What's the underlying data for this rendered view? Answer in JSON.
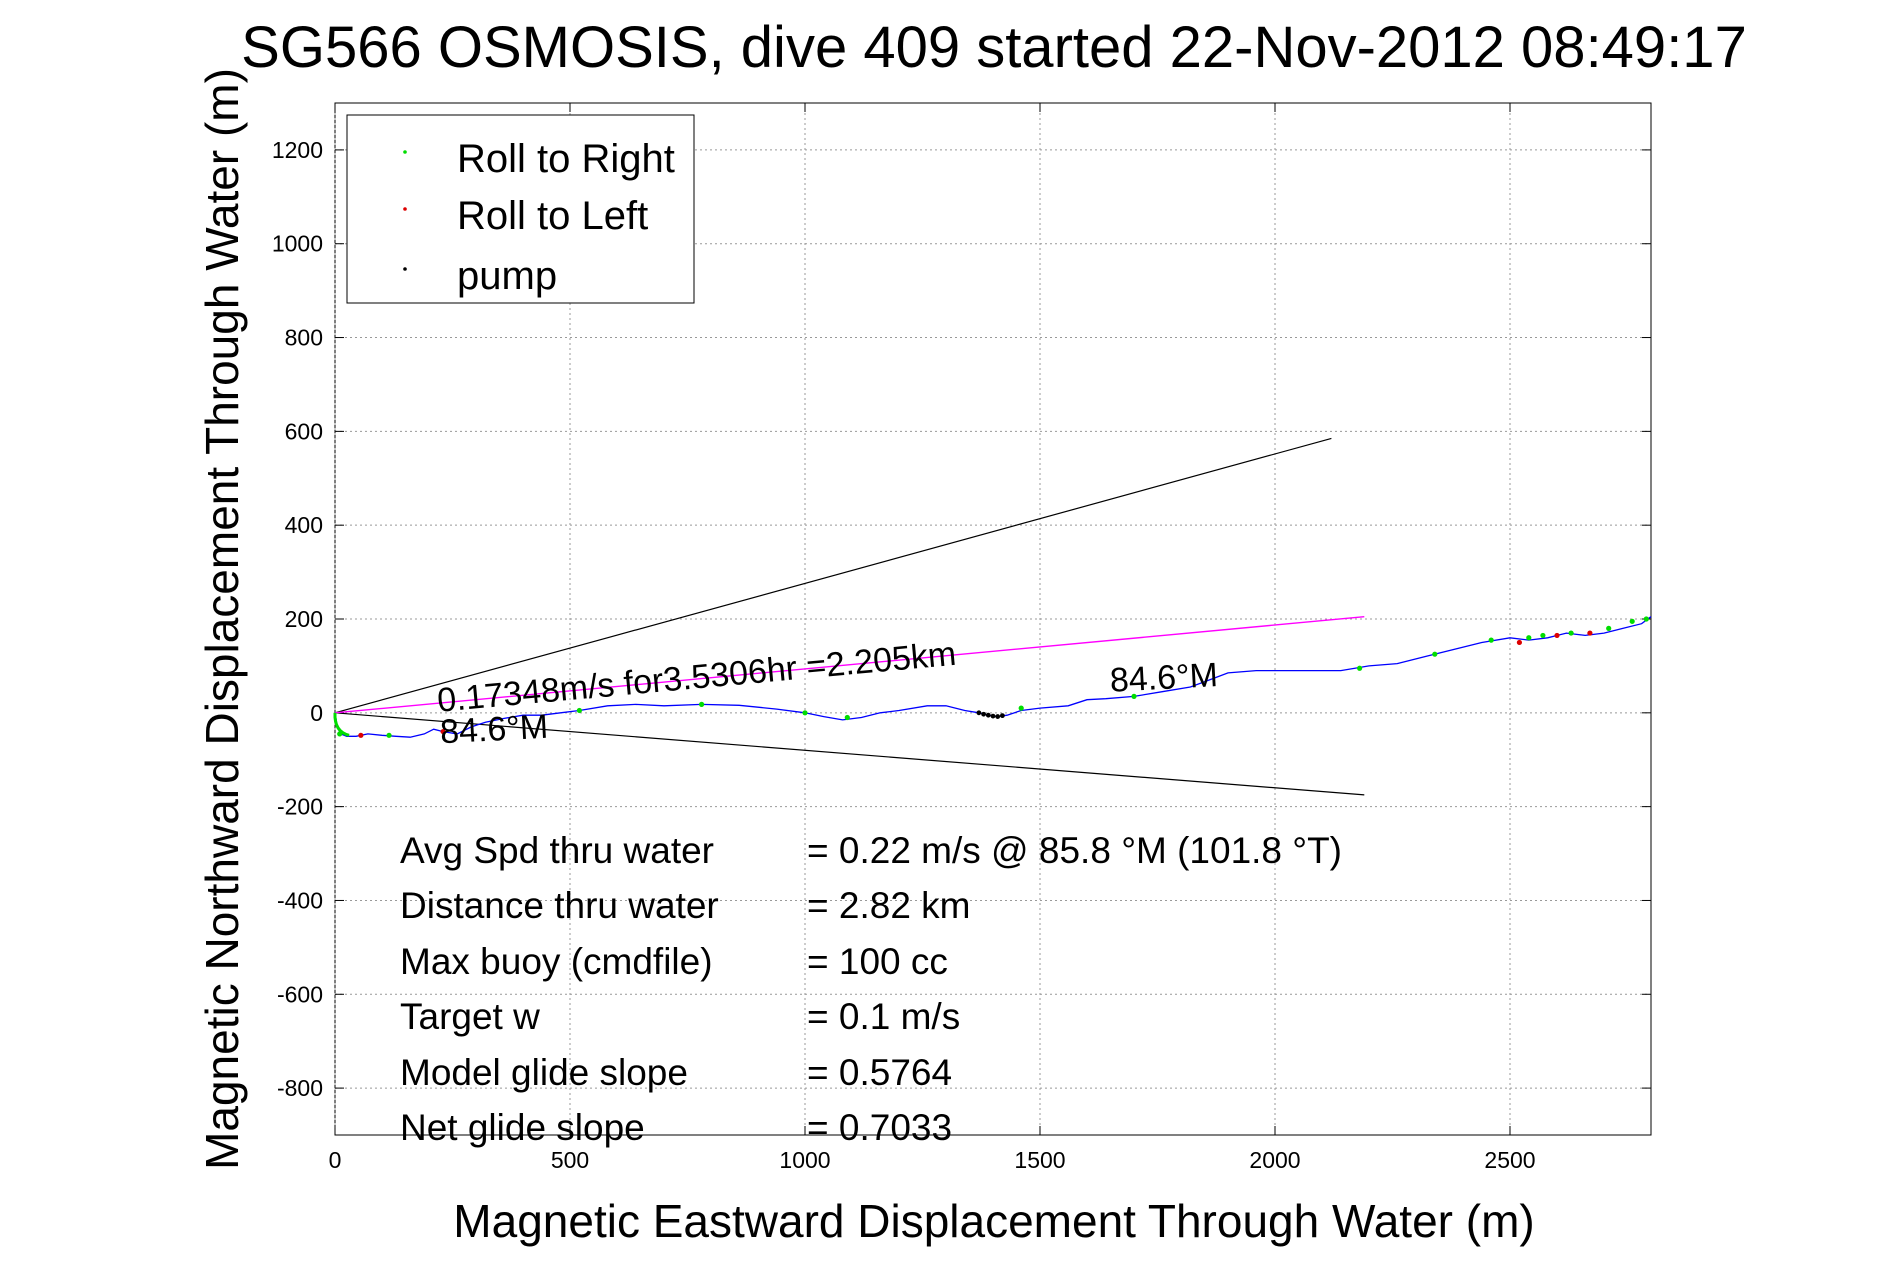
{
  "chart_data": {
    "type": "line",
    "title": "SG566 OSMOSIS, dive 409 started 22-Nov-2012 08:49:17",
    "xlabel": "Magnetic Eastward Displacement Through Water (m)",
    "ylabel": "Magnetic Northward Displacement Through Water (m)",
    "xlim": [
      0,
      2800
    ],
    "ylim": [
      -900,
      1300
    ],
    "xticks": [
      0,
      500,
      1000,
      1500,
      2000,
      2500
    ],
    "yticks": [
      -800,
      -600,
      -400,
      -200,
      0,
      200,
      400,
      600,
      800,
      1000,
      1200
    ],
    "grid": true,
    "legend": {
      "position": "top-left",
      "entries": [
        {
          "label": "Roll to Right",
          "color": "#00dd00"
        },
        {
          "label": "Roll to Left",
          "color": "#dd0000"
        },
        {
          "label": "pump",
          "color": "#000000"
        }
      ]
    },
    "track": {
      "color": "#0000ff",
      "x": [
        0,
        5,
        12,
        25,
        45,
        70,
        100,
        130,
        160,
        190,
        210,
        230,
        260,
        290,
        320,
        360,
        400,
        440,
        480,
        520,
        580,
        640,
        700,
        780,
        860,
        940,
        1000,
        1040,
        1080,
        1120,
        1160,
        1200,
        1260,
        1300,
        1340,
        1370,
        1390,
        1410,
        1430,
        1460,
        1500,
        1560,
        1600,
        1640,
        1700,
        1760,
        1820,
        1860,
        1900,
        1960,
        2020,
        2080,
        2140,
        2200,
        2260,
        2320,
        2380,
        2440,
        2500,
        2540,
        2580,
        2620,
        2660,
        2700,
        2740,
        2780,
        2800
      ],
      "y": [
        0,
        -30,
        -45,
        -50,
        -50,
        -45,
        -48,
        -50,
        -52,
        -45,
        -35,
        -40,
        -45,
        -30,
        -20,
        -12,
        -5,
        -5,
        0,
        5,
        15,
        18,
        15,
        18,
        16,
        8,
        0,
        -8,
        -15,
        -10,
        0,
        5,
        15,
        15,
        5,
        0,
        -5,
        -8,
        -5,
        5,
        10,
        15,
        28,
        30,
        35,
        45,
        55,
        70,
        85,
        90,
        90,
        90,
        90,
        100,
        105,
        120,
        135,
        150,
        160,
        155,
        160,
        170,
        165,
        170,
        180,
        190,
        205
      ]
    },
    "roll_right_points": {
      "x": [
        10,
        115,
        520,
        780,
        1000,
        1090,
        1460,
        1700,
        2180,
        2340,
        2460,
        2540,
        2570,
        2630,
        2710,
        2760,
        2790
      ],
      "y": [
        -45,
        -48,
        5,
        18,
        0,
        -10,
        10,
        35,
        95,
        125,
        155,
        160,
        165,
        170,
        180,
        195,
        200
      ]
    },
    "roll_left_points": {
      "x": [
        55,
        230,
        2520,
        2600,
        2670
      ],
      "y": [
        -48,
        -40,
        150,
        165,
        170
      ]
    },
    "pump_points": {
      "x": [
        1370,
        1380,
        1390,
        1400,
        1410,
        1420
      ],
      "y": [
        0,
        -3,
        -5,
        -7,
        -8,
        -6
      ]
    },
    "cone_lines": [
      {
        "x": [
          0,
          2120
        ],
        "y": [
          0,
          585
        ],
        "color": "#000000"
      },
      {
        "x": [
          0,
          2190
        ],
        "y": [
          0,
          -175
        ],
        "color": "#000000"
      }
    ],
    "mean_vector": {
      "x": [
        0,
        2190
      ],
      "y": [
        0,
        205
      ],
      "color": "#ff00ff"
    },
    "annotations": [
      {
        "text": "0.17348m/s for3.5306hr =2.205km",
        "x": 220,
        "y": 2,
        "rotate": -5.2
      },
      {
        "text": "84.6°M",
        "x": 1650,
        "y": 45,
        "rotate": -3
      },
      {
        "text": "84.6°M",
        "x": 225,
        "y": -65,
        "rotate": -3
      }
    ],
    "stats": [
      {
        "label": "Avg Spd thru water",
        "value": "=  0.22 m/s @  85.8 °M (101.8 °T)"
      },
      {
        "label": "Distance thru water",
        "value": "=  2.82 km"
      },
      {
        "label": "Max buoy (cmdfile)",
        "value": "= 100 cc"
      },
      {
        "label": "Target w",
        "value": "= 0.1 m/s"
      },
      {
        "label": "Model glide slope",
        "value": "= 0.5764"
      },
      {
        "label": "Net glide slope",
        "value": "= 0.7033"
      }
    ]
  }
}
